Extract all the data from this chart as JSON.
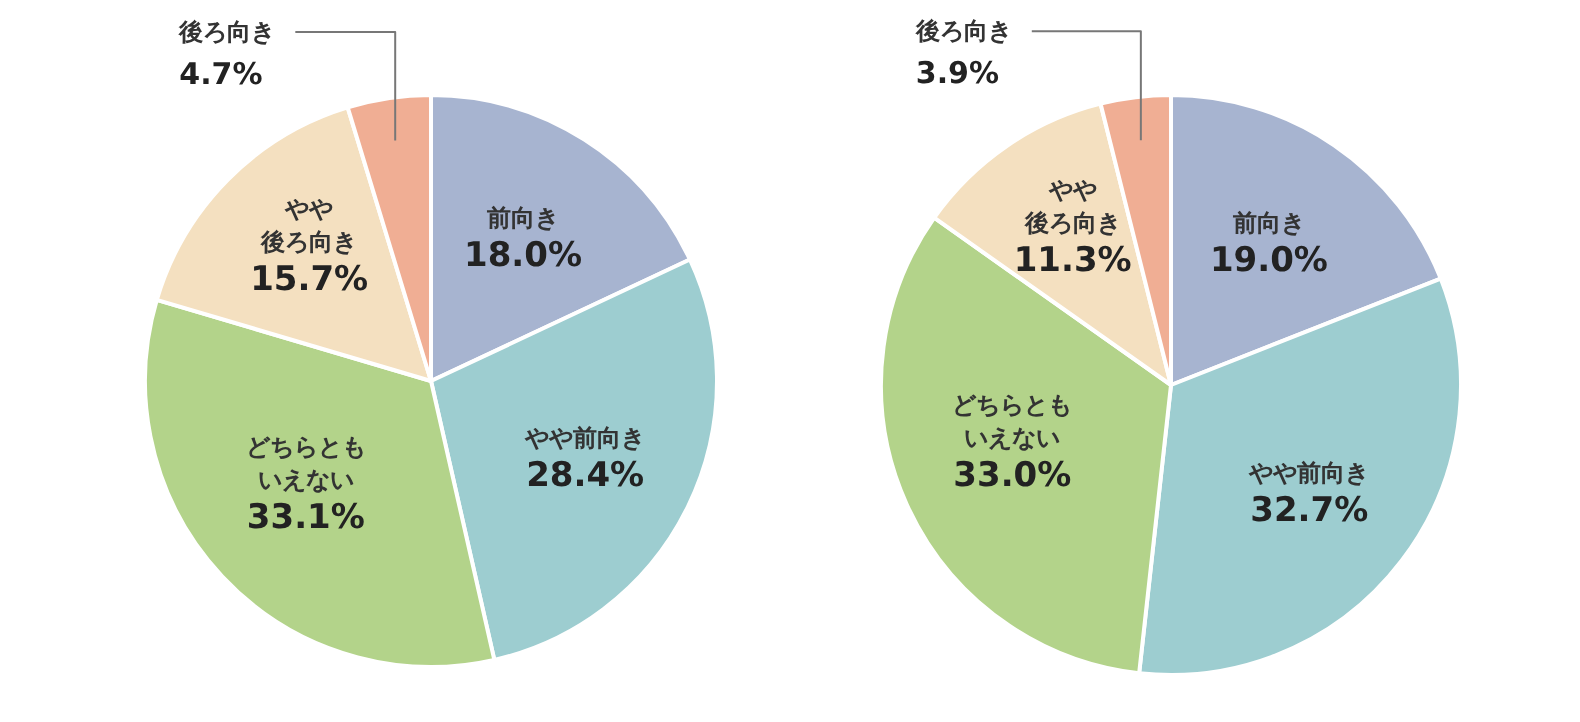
{
  "chart_data": [
    {
      "type": "pie",
      "categories": [
        "前向き",
        "やや前向き",
        "どちらともいえない",
        "やや後ろ向き",
        "後ろ向き"
      ],
      "values": [
        18.0,
        28.4,
        33.1,
        15.7,
        4.7
      ],
      "value_labels": [
        "18.0%",
        "28.4%",
        "33.1%",
        "15.7%",
        "4.7%"
      ],
      "colors": [
        "#a7b4d0",
        "#9dcdd0",
        "#b3d38a",
        "#f4e0c0",
        "#f0ae94"
      ]
    },
    {
      "type": "pie",
      "categories": [
        "前向き",
        "やや前向き",
        "どちらともいえない",
        "やや後ろ向き",
        "後ろ向き"
      ],
      "values": [
        19.0,
        32.7,
        33.0,
        11.3,
        3.9
      ],
      "value_labels": [
        "19.0%",
        "32.7%",
        "33.0%",
        "11.3%",
        "3.9%"
      ],
      "colors": [
        "#a7b4d0",
        "#9dcdd0",
        "#b3d38a",
        "#f4e0c0",
        "#f0ae94"
      ]
    }
  ]
}
